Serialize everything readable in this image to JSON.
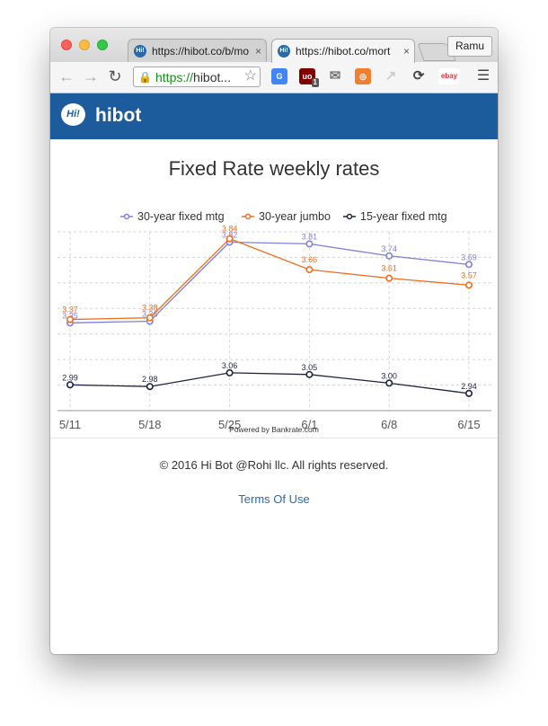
{
  "browser": {
    "tabs": [
      {
        "title": "https://hibot.co/b/mo"
      },
      {
        "title": "https://hibot.co/mort"
      }
    ],
    "profile": "Ramu",
    "address": {
      "scheme": "https://",
      "host": "hibot..."
    },
    "extensions": [
      {
        "name": "google-translate-icon",
        "color": "#4285f4",
        "glyph": "G"
      },
      {
        "name": "ublock-icon",
        "color": "#800000",
        "glyph": "uo",
        "badge": "1"
      },
      {
        "name": "mail-icon",
        "color": "#777777",
        "glyph": "✉"
      },
      {
        "name": "lifesaver-icon",
        "color": "#f08030",
        "glyph": "◎"
      },
      {
        "name": "cursor-icon",
        "color": "#cccccc",
        "glyph": "↗"
      },
      {
        "name": "refresh-extension-icon",
        "color": "#444444",
        "glyph": "⟳"
      },
      {
        "name": "ebay-icon",
        "color": "#ffffff",
        "glyph": "ebay"
      }
    ]
  },
  "site": {
    "brand": "hibot",
    "logo_mark": "Hi!"
  },
  "page": {
    "title": "Fixed Rate weekly rates"
  },
  "chart_data": {
    "type": "line",
    "categories": [
      "5/11",
      "5/18",
      "5/25",
      "6/1",
      "6/8",
      "6/15"
    ],
    "series": [
      {
        "name": "30-year fixed mtg",
        "color": "#8080d8",
        "values": [
          3.35,
          3.36,
          3.82,
          3.81,
          3.74,
          3.69
        ]
      },
      {
        "name": "30-year jumbo",
        "color": "#ef6d1e",
        "values": [
          3.37,
          3.38,
          3.84,
          3.66,
          3.61,
          3.57
        ]
      },
      {
        "name": "15-year fixed mtg",
        "color": "#1e2340",
        "values": [
          2.99,
          2.98,
          3.06,
          3.05,
          3.0,
          2.94
        ]
      }
    ],
    "ylim": [
      2.84,
      3.88
    ],
    "grid": true,
    "legend": "top-center",
    "credit": "Powered by Bankrate.com"
  },
  "footer": {
    "copyright": "© 2016 Hi Bot @Rohi llc. All rights reserved.",
    "terms": "Terms Of Use"
  }
}
